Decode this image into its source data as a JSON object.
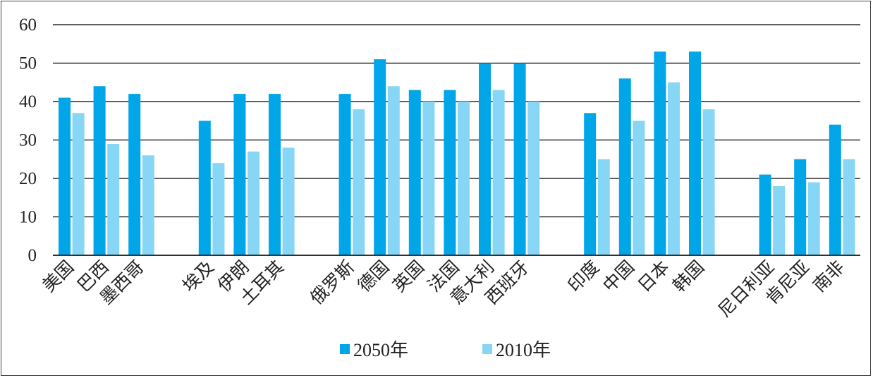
{
  "chart_data": {
    "type": "bar",
    "categories": [
      "美国",
      "巴西",
      "墨西哥",
      "埃及",
      "伊朗",
      "土耳其",
      "俄罗斯",
      "德国",
      "英国",
      "法国",
      "意大利",
      "西班牙",
      "印度",
      "中国",
      "日本",
      "韩国",
      "尼日利亚",
      "肯尼亚",
      "南非"
    ],
    "groups": [
      [
        "美国",
        "巴西",
        "墨西哥"
      ],
      [
        "埃及",
        "伊朗",
        "土耳其"
      ],
      [
        "俄罗斯",
        "德国",
        "英国",
        "法国",
        "意大利",
        "西班牙"
      ],
      [
        "印度",
        "中国",
        "日本",
        "韩国"
      ],
      [
        "尼日利亚",
        "肯尼亚",
        "南非"
      ]
    ],
    "series": [
      {
        "name": "2050年",
        "color": "#00a6e8",
        "values": [
          41,
          44,
          42,
          35,
          42,
          42,
          42,
          51,
          43,
          43,
          50,
          50,
          37,
          46,
          53,
          53,
          21,
          25,
          34
        ]
      },
      {
        "name": "2010年",
        "color": "#88d6f5",
        "values": [
          37,
          29,
          26,
          24,
          27,
          28,
          38,
          44,
          40,
          40,
          43,
          40,
          25,
          35,
          45,
          38,
          18,
          19,
          25
        ]
      }
    ],
    "yticks": [
      "0",
      "10",
      "20",
      "30",
      "40",
      "50",
      "60"
    ],
    "ylim": [
      0,
      60
    ],
    "grid": true,
    "legend_position": "bottom-center"
  }
}
